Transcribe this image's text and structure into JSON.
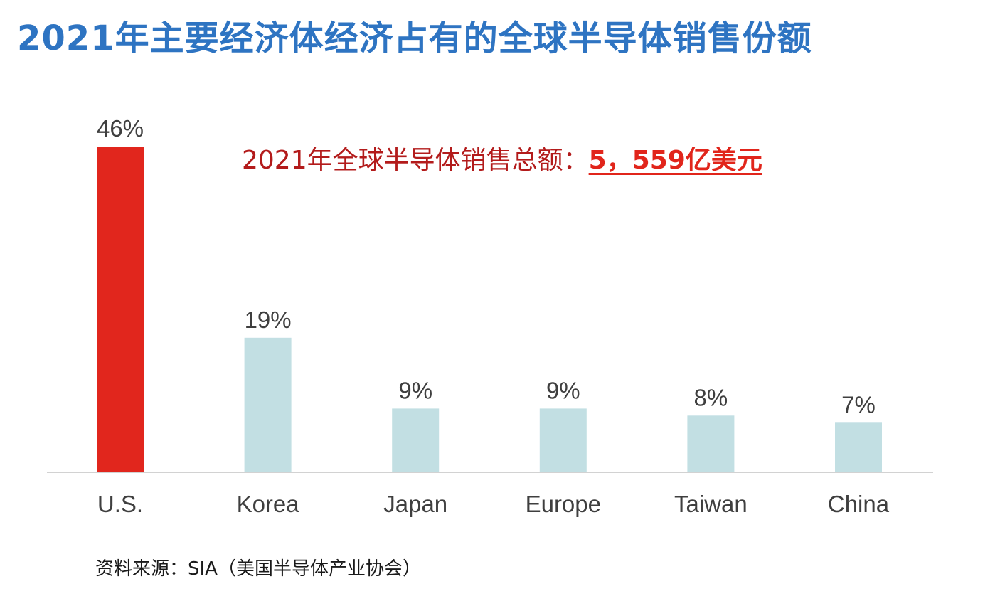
{
  "title": "2021年主要经济体经济占有的全球半导体销售份额",
  "annotation": {
    "prefix": "2021年全球半导体销售总额：",
    "amount": "5，559亿美元"
  },
  "source": "资料来源：SIA（美国半导体产业协会）",
  "colors": {
    "title": "#2e74c2",
    "highlight_bar": "#e1261d",
    "bar": "#c2dfe3",
    "axis": "#d2d2d2",
    "label": "#3f3f3f",
    "annotation": "#b31b1b"
  },
  "chart_data": {
    "type": "bar",
    "categories": [
      "U.S.",
      "Korea",
      "Japan",
      "Europe",
      "Taiwan",
      "China"
    ],
    "values": [
      46,
      19,
      9,
      9,
      8,
      7
    ],
    "data_labels": [
      "46%",
      "19%",
      "9%",
      "9%",
      "8%",
      "7%"
    ],
    "highlight": "U.S.",
    "ylim": [
      0,
      46
    ],
    "grid": false,
    "legend": "none",
    "xlabel": "",
    "ylabel": ""
  }
}
